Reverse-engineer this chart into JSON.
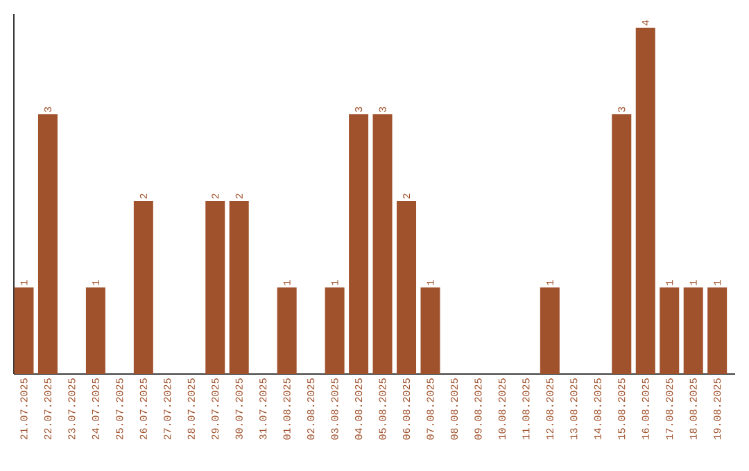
{
  "chart_data": {
    "type": "bar",
    "categories": [
      "21.07.2025",
      "22.07.2025",
      "23.07.2025",
      "24.07.2025",
      "25.07.2025",
      "26.07.2025",
      "27.07.2025",
      "28.07.2025",
      "29.07.2025",
      "30.07.2025",
      "31.07.2025",
      "01.08.2025",
      "02.08.2025",
      "03.08.2025",
      "04.08.2025",
      "05.08.2025",
      "06.08.2025",
      "07.08.2025",
      "08.08.2025",
      "09.08.2025",
      "10.08.2025",
      "11.08.2025",
      "12.08.2025",
      "13.08.2025",
      "14.08.2025",
      "15.08.2025",
      "16.08.2025",
      "17.08.2025",
      "18.08.2025",
      "19.08.2025"
    ],
    "values": [
      1,
      3,
      0,
      1,
      0,
      2,
      0,
      0,
      2,
      2,
      0,
      1,
      0,
      1,
      3,
      3,
      2,
      1,
      0,
      0,
      0,
      0,
      1,
      0,
      0,
      3,
      4,
      1,
      1,
      1
    ],
    "value_labels": [
      "1",
      "3",
      null,
      "1",
      null,
      "2",
      null,
      null,
      "2",
      "2",
      null,
      "1",
      null,
      "1",
      "3",
      "3",
      "2",
      "1",
      null,
      null,
      null,
      null,
      "1",
      null,
      null,
      "3",
      "4",
      "1",
      "1",
      "1"
    ],
    "color": "#a0522d"
  }
}
